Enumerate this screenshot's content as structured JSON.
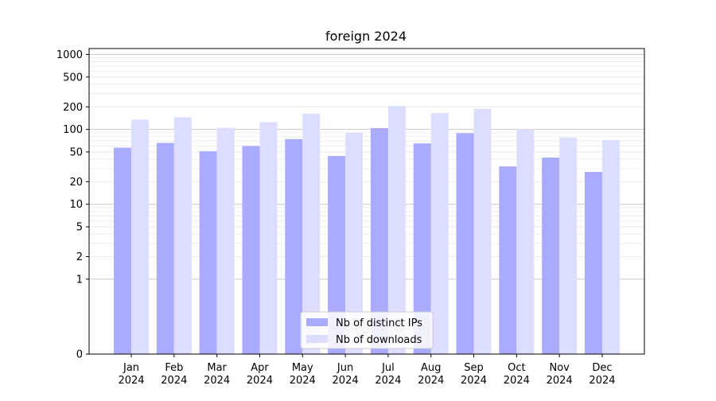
{
  "chart_data": {
    "type": "bar",
    "title": "foreign 2024",
    "xlabel": "",
    "ylabel": "",
    "scale": "symlog",
    "ylim": [
      0,
      1200
    ],
    "yticks": [
      0,
      1,
      2,
      5,
      10,
      20,
      50,
      100,
      200,
      500,
      1000
    ],
    "ytick_labels": [
      "0",
      "1",
      "2",
      "5",
      "10",
      "20",
      "50",
      "100",
      "200",
      "500",
      "1000"
    ],
    "grid": true,
    "legend_position": "bottom-center",
    "categories": [
      "Jan\n2024",
      "Feb\n2024",
      "Mar\n2024",
      "Apr\n2024",
      "May\n2024",
      "Jun\n2024",
      "Jul\n2024",
      "Aug\n2024",
      "Sep\n2024",
      "Oct\n2024",
      "Nov\n2024",
      "Dec\n2024"
    ],
    "category_lines": [
      [
        "Jan",
        "2024"
      ],
      [
        "Feb",
        "2024"
      ],
      [
        "Mar",
        "2024"
      ],
      [
        "Apr",
        "2024"
      ],
      [
        "May",
        "2024"
      ],
      [
        "Jun",
        "2024"
      ],
      [
        "Jul",
        "2024"
      ],
      [
        "Aug",
        "2024"
      ],
      [
        "Sep",
        "2024"
      ],
      [
        "Oct",
        "2024"
      ],
      [
        "Nov",
        "2024"
      ],
      [
        "Dec",
        "2024"
      ]
    ],
    "series": [
      {
        "name": "Nb of distinct IPs",
        "color": "#aaaaff",
        "values": [
          57,
          66,
          51,
          60,
          74,
          44,
          104,
          65,
          89,
          32,
          42,
          27
        ]
      },
      {
        "name": "Nb of downloads",
        "color": "#ddddff",
        "values": [
          135,
          145,
          105,
          125,
          162,
          90,
          205,
          165,
          188,
          100,
          78,
          72
        ]
      }
    ]
  }
}
